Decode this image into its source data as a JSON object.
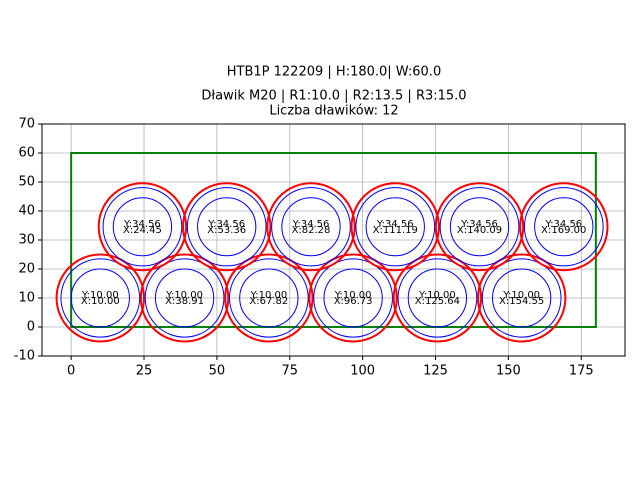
{
  "chart_data": {
    "type": "circles",
    "title": "HTB1P 122209 | H:180.0| W:60.0",
    "subtitle": "Dławik M20 | R1:10.0 | R2:13.5 | R3:15.0",
    "count_label": "Liczba dławików: 12",
    "xlim": [
      -10,
      190
    ],
    "ylim": [
      -10,
      70
    ],
    "xticks": [
      0,
      25,
      50,
      75,
      100,
      125,
      150,
      175
    ],
    "yticks": [
      -10,
      0,
      10,
      20,
      30,
      40,
      50,
      60,
      70
    ],
    "grid": true,
    "boundary": {
      "x": [
        0,
        180
      ],
      "y": [
        0,
        60
      ],
      "color": "#008000"
    },
    "radii": [
      {
        "value": 10.0,
        "color": "#0000ff"
      },
      {
        "value": 13.5,
        "color": "#0000ff"
      },
      {
        "value": 15.0,
        "color": "#ff0000"
      }
    ],
    "circles": {
      "x": [
        10.0,
        38.91,
        67.82,
        96.73,
        125.64,
        154.55,
        24.45,
        53.36,
        82.28,
        111.19,
        140.09,
        169.0
      ],
      "y": [
        10.0,
        10.0,
        10.0,
        10.0,
        10.0,
        10.0,
        34.56,
        34.56,
        34.56,
        34.56,
        34.56,
        34.56
      ],
      "x_labels": [
        "X:10.00",
        "X:38.91",
        "X:67.82",
        "X:96.73",
        "X:125.64",
        "X:154.55",
        "X:24.45",
        "X:53.36",
        "X:82.28",
        "X:111.19",
        "X:140.09",
        "X:169.00"
      ],
      "y_labels": [
        "Y:10.00",
        "Y:10.00",
        "Y:10.00",
        "Y:10.00",
        "Y:10.00",
        "Y:10.00",
        "Y:34.56",
        "Y:34.56",
        "Y:34.56",
        "Y:34.56",
        "Y:34.56",
        "Y:34.56"
      ]
    }
  }
}
